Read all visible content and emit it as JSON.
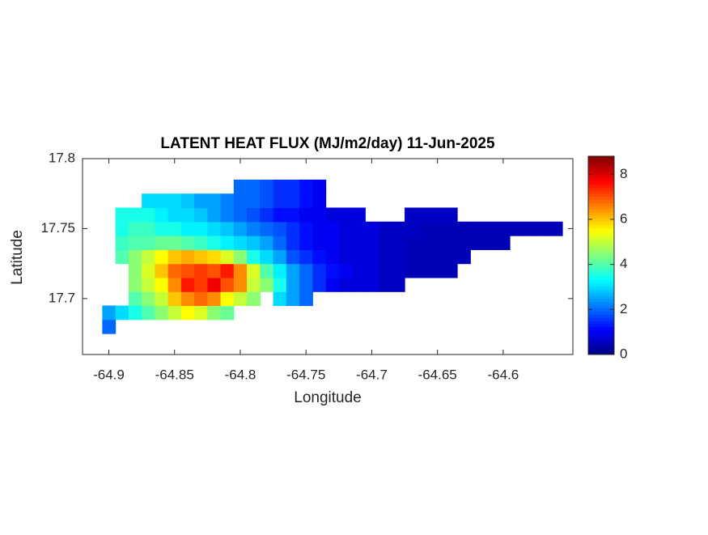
{
  "chart_data": {
    "type": "heatmap",
    "title": "LATENT HEAT FLUX (MJ/m2/day) 11-Jun-2025",
    "xlabel": "Longitude",
    "ylabel": "Latitude",
    "xlim": [
      -64.92,
      -64.547
    ],
    "ylim": [
      17.66,
      17.8
    ],
    "xticks": [
      -64.9,
      -64.85,
      -64.8,
      -64.75,
      -64.7,
      -64.65,
      -64.6
    ],
    "yticks": [
      17.7,
      17.75,
      17.8
    ],
    "colormap": "jet",
    "clim": [
      0,
      8.8
    ],
    "cticks": [
      0,
      2,
      4,
      6,
      8
    ],
    "x": [
      -64.9,
      -64.89,
      -64.88,
      -64.87,
      -64.86,
      -64.85,
      -64.84,
      -64.83,
      -64.82,
      -64.81,
      -64.8,
      -64.79,
      -64.78,
      -64.77,
      -64.76,
      -64.75,
      -64.74,
      -64.73,
      -64.72,
      -64.71,
      -64.7,
      -64.69,
      -64.68,
      -64.67,
      -64.66,
      -64.65,
      -64.64,
      -64.63,
      -64.62,
      -64.61,
      -64.6,
      -64.59,
      -64.58,
      -64.57,
      -64.56
    ],
    "y": [
      17.68,
      17.69,
      17.7,
      17.71,
      17.72,
      17.73,
      17.74,
      17.75,
      17.76,
      17.77,
      17.78
    ],
    "z": [
      [
        2,
        null,
        null,
        null,
        null,
        null,
        null,
        null,
        null,
        null,
        null,
        null,
        null,
        null,
        null,
        null,
        null,
        null,
        null,
        null,
        null,
        null,
        null,
        null,
        null,
        null,
        null,
        null,
        null,
        null,
        null,
        null,
        null,
        null,
        null
      ],
      [
        2.5,
        3,
        3.5,
        4,
        4.5,
        5,
        5.5,
        5.2,
        4.5,
        4.2,
        null,
        null,
        null,
        null,
        null,
        null,
        null,
        null,
        null,
        null,
        null,
        null,
        null,
        null,
        null,
        null,
        null,
        null,
        null,
        null,
        null,
        null,
        null,
        null,
        null
      ],
      [
        null,
        null,
        4,
        4.5,
        5,
        6,
        6.5,
        6.8,
        6.5,
        5.5,
        5,
        4.5,
        null,
        3,
        2.5,
        2,
        null,
        null,
        null,
        null,
        null,
        null,
        null,
        null,
        null,
        null,
        null,
        null,
        null,
        null,
        null,
        null,
        null,
        null,
        null
      ],
      [
        null,
        null,
        4.5,
        5,
        5.5,
        6.5,
        7.5,
        7.2,
        7.8,
        7,
        6.5,
        5,
        4.5,
        3.5,
        2.5,
        2,
        1.5,
        1,
        0.8,
        0.8,
        0.8,
        0.6,
        0.6,
        null,
        null,
        null,
        null,
        null,
        null,
        null,
        null,
        null,
        null,
        null,
        null
      ],
      [
        null,
        null,
        4.5,
        5.2,
        6,
        6.8,
        7,
        7.2,
        7,
        7.5,
        6.5,
        5.2,
        4,
        3.2,
        2.5,
        2,
        1.5,
        1.2,
        1,
        0.8,
        0.8,
        0.6,
        0.6,
        0.5,
        0.5,
        0.5,
        0.5,
        null,
        null,
        null,
        null,
        null,
        null,
        null,
        null
      ],
      [
        null,
        4,
        4.5,
        5,
        5.5,
        6,
        6.2,
        6,
        5.8,
        5.2,
        4.5,
        3.5,
        3,
        2.5,
        1.8,
        1.5,
        1.2,
        1,
        0.8,
        0.8,
        0.8,
        0.6,
        0.6,
        0.5,
        0.5,
        0.5,
        0.5,
        0.5,
        null,
        null,
        null,
        null,
        null,
        null,
        null
      ],
      [
        null,
        3.8,
        4,
        4,
        4.2,
        4.2,
        4,
        3.8,
        3.5,
        3.2,
        3,
        2.8,
        2.5,
        2,
        1.5,
        1.2,
        1,
        1,
        0.8,
        0.8,
        0.8,
        0.6,
        0.6,
        0.5,
        0.5,
        0.5,
        0.5,
        0.5,
        0.5,
        0.5,
        0.5,
        null,
        null,
        null,
        null
      ],
      [
        null,
        3.5,
        3.8,
        3.8,
        3.5,
        3.5,
        3.2,
        3.2,
        3,
        2.8,
        2.5,
        2.2,
        2,
        1.8,
        1.5,
        1.2,
        1,
        1,
        0.8,
        0.8,
        0.8,
        0.6,
        0.6,
        0.6,
        0.5,
        0.5,
        0.5,
        0.5,
        0.5,
        0.5,
        0.5,
        0.5,
        0.5,
        0.5,
        0.5
      ],
      [
        null,
        3.5,
        3.5,
        3.5,
        3.2,
        3,
        3,
        2.8,
        2.5,
        2.2,
        2,
        1.8,
        1.5,
        1.2,
        1.2,
        1,
        1,
        0.8,
        0.8,
        0.8,
        null,
        null,
        null,
        0.6,
        0.6,
        0.6,
        0.6,
        null,
        null,
        null,
        null,
        null,
        null,
        null,
        null
      ],
      [
        null,
        null,
        null,
        3,
        3,
        3,
        2.8,
        2.5,
        2.5,
        2.2,
        2,
        2,
        1.8,
        1.5,
        1.5,
        1.2,
        1,
        null,
        null,
        null,
        null,
        null,
        null,
        null,
        null,
        null,
        null,
        null,
        null,
        null,
        null,
        null,
        null,
        null,
        null
      ],
      [
        null,
        null,
        null,
        null,
        null,
        null,
        null,
        null,
        null,
        null,
        2,
        2,
        1.8,
        1.5,
        1.5,
        1.2,
        1,
        null,
        null,
        null,
        null,
        null,
        null,
        null,
        null,
        null,
        null,
        null,
        null,
        null,
        null,
        null,
        null,
        null,
        null
      ]
    ]
  }
}
